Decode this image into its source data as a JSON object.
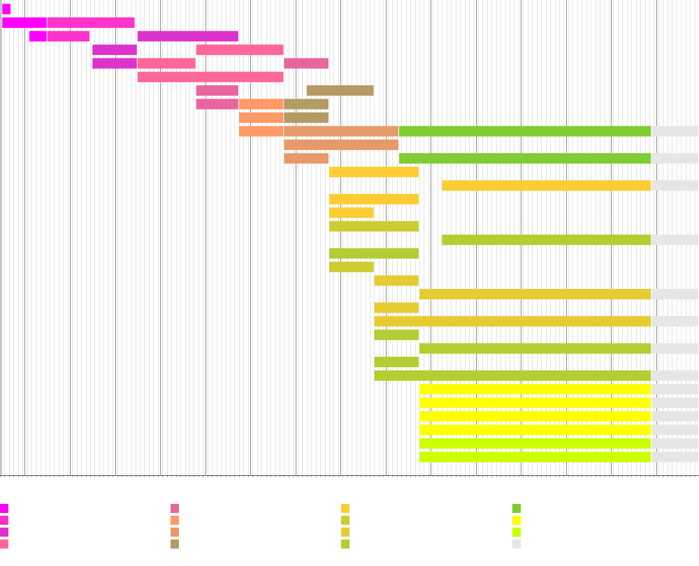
{
  "chart_data": {
    "type": "gantt",
    "title": "",
    "xlabel": "",
    "ylabel": "",
    "grid": true,
    "legend_position": "bottom",
    "x_range": [
      0,
      15.5
    ],
    "series": [
      {
        "name": "",
        "color": "#ff00ff"
      },
      {
        "name": "",
        "color": "#ff33cc"
      },
      {
        "name": "",
        "color": "#dd33cc"
      },
      {
        "name": "",
        "color": "#ff6699"
      },
      {
        "name": "",
        "color": "#e8669e"
      },
      {
        "name": "",
        "color": "#ff9966"
      },
      {
        "name": "",
        "color": "#e8996a"
      },
      {
        "name": "",
        "color": "#b59a66"
      },
      {
        "name": "",
        "color": "#ffcc33"
      },
      {
        "name": "",
        "color": "#cccc33"
      },
      {
        "name": "",
        "color": "#e6cc33"
      },
      {
        "name": "",
        "color": "#b5cc33"
      },
      {
        "name": "",
        "color": "#7fcc33"
      },
      {
        "name": "",
        "color": "#ffff00"
      },
      {
        "name": "",
        "color": "#ccff00"
      },
      {
        "name": "",
        "color": "#e6e6e6"
      }
    ],
    "rows": [
      [
        {
          "s": 0,
          "start": 0.05,
          "end": 0.25
        }
      ],
      [
        {
          "s": 0,
          "start": 0.05,
          "end": 1.05
        },
        {
          "s": 1,
          "start": 1.05,
          "end": 3.0
        }
      ],
      [
        {
          "s": 0,
          "start": 0.65,
          "end": 1.05
        },
        {
          "s": 1,
          "start": 1.05,
          "end": 2.0
        },
        {
          "s": 2,
          "start": 3.05,
          "end": 5.3
        }
      ],
      [
        {
          "s": 2,
          "start": 2.05,
          "end": 3.05
        },
        {
          "s": 3,
          "start": 4.35,
          "end": 6.3
        }
      ],
      [
        {
          "s": 2,
          "start": 2.05,
          "end": 3.05
        },
        {
          "s": 3,
          "start": 3.05,
          "end": 4.35
        },
        {
          "s": 4,
          "start": 6.3,
          "end": 7.3
        }
      ],
      [
        {
          "s": 3,
          "start": 3.05,
          "end": 6.3
        }
      ],
      [
        {
          "s": 4,
          "start": 4.35,
          "end": 5.3
        },
        {
          "s": 7,
          "start": 6.8,
          "end": 8.3
        }
      ],
      [
        {
          "s": 4,
          "start": 4.35,
          "end": 5.3
        },
        {
          "s": 5,
          "start": 5.3,
          "end": 6.3
        },
        {
          "s": 7,
          "start": 6.3,
          "end": 7.3
        }
      ],
      [
        {
          "s": 5,
          "start": 5.3,
          "end": 6.3
        },
        {
          "s": 7,
          "start": 6.3,
          "end": 7.3
        }
      ],
      [
        {
          "s": 5,
          "start": 5.3,
          "end": 6.3
        },
        {
          "s": 6,
          "start": 6.3,
          "end": 8.85
        },
        {
          "s": 12,
          "start": 8.85,
          "end": 14.45
        },
        {
          "s": 15,
          "start": 14.45,
          "end": 15.5
        }
      ],
      [
        {
          "s": 6,
          "start": 6.3,
          "end": 8.85
        }
      ],
      [
        {
          "s": 6,
          "start": 6.3,
          "end": 7.3
        },
        {
          "s": 12,
          "start": 8.85,
          "end": 14.45
        },
        {
          "s": 15,
          "start": 14.45,
          "end": 15.5
        }
      ],
      [
        {
          "s": 8,
          "start": 7.3,
          "end": 9.3
        }
      ],
      [
        {
          "s": 8,
          "start": 9.8,
          "end": 14.45
        },
        {
          "s": 15,
          "start": 14.45,
          "end": 15.5
        }
      ],
      [
        {
          "s": 8,
          "start": 7.3,
          "end": 9.3
        }
      ],
      [
        {
          "s": 8,
          "start": 7.3,
          "end": 8.3
        }
      ],
      [
        {
          "s": 9,
          "start": 7.3,
          "end": 9.3
        }
      ],
      [
        {
          "s": 11,
          "start": 9.8,
          "end": 14.45
        },
        {
          "s": 15,
          "start": 14.45,
          "end": 15.5
        }
      ],
      [
        {
          "s": 11,
          "start": 7.3,
          "end": 9.3
        }
      ],
      [
        {
          "s": 9,
          "start": 7.3,
          "end": 8.3
        }
      ],
      [
        {
          "s": 10,
          "start": 8.3,
          "end": 9.3
        }
      ],
      [
        {
          "s": 10,
          "start": 9.3,
          "end": 14.45
        },
        {
          "s": 15,
          "start": 14.45,
          "end": 15.5
        }
      ],
      [
        {
          "s": 10,
          "start": 8.3,
          "end": 9.3
        }
      ],
      [
        {
          "s": 10,
          "start": 8.3,
          "end": 14.45
        },
        {
          "s": 15,
          "start": 14.45,
          "end": 15.5
        }
      ],
      [
        {
          "s": 11,
          "start": 8.3,
          "end": 9.3
        }
      ],
      [
        {
          "s": 11,
          "start": 9.3,
          "end": 14.45
        },
        {
          "s": 15,
          "start": 14.45,
          "end": 15.5
        }
      ],
      [
        {
          "s": 11,
          "start": 8.3,
          "end": 9.3
        }
      ],
      [
        {
          "s": 11,
          "start": 8.3,
          "end": 14.45
        },
        {
          "s": 15,
          "start": 14.45,
          "end": 15.5
        }
      ],
      [
        {
          "s": 13,
          "start": 9.3,
          "end": 14.45
        },
        {
          "s": 15,
          "start": 14.45,
          "end": 15.5
        }
      ],
      [
        {
          "s": 13,
          "start": 9.3,
          "end": 14.45
        },
        {
          "s": 15,
          "start": 14.45,
          "end": 15.5
        }
      ],
      [
        {
          "s": 13,
          "start": 9.3,
          "end": 14.45
        },
        {
          "s": 15,
          "start": 14.45,
          "end": 15.5
        }
      ],
      [
        {
          "s": 13,
          "start": 9.3,
          "end": 14.45
        },
        {
          "s": 15,
          "start": 14.45,
          "end": 15.5
        }
      ],
      [
        {
          "s": 14,
          "start": 9.3,
          "end": 14.45
        },
        {
          "s": 15,
          "start": 14.45,
          "end": 15.5
        }
      ],
      [
        {
          "s": 14,
          "start": 9.3,
          "end": 14.45
        },
        {
          "s": 15,
          "start": 14.45,
          "end": 15.5
        }
      ]
    ]
  }
}
